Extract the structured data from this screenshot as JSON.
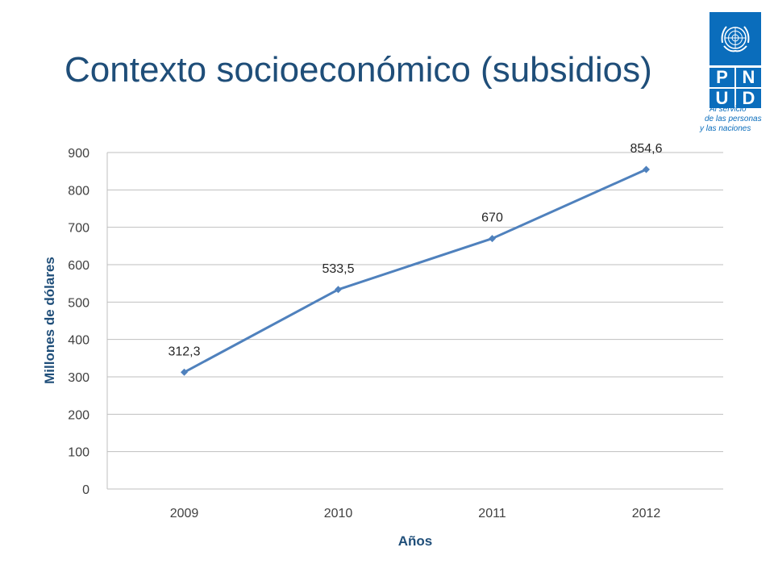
{
  "slide": {
    "title": "Contexto socioeconómico (subsidios)"
  },
  "logo": {
    "icon": "un-emblem-icon",
    "letters": [
      "P",
      "N",
      "U",
      "D"
    ],
    "tagline": [
      "Al servicio",
      "de las personas",
      "y las naciones"
    ],
    "color": "#0a6dbc"
  },
  "chart_data": {
    "type": "line",
    "categories": [
      "2009",
      "2010",
      "2011",
      "2012"
    ],
    "series": [
      {
        "values": [
          312.3,
          533.5,
          670,
          854.6
        ],
        "labels": [
          "312,3",
          "533,5",
          "670",
          "854,6"
        ]
      }
    ],
    "xlabel": "Años",
    "ylabel": "Millones de dólares",
    "ylim": [
      0,
      900
    ],
    "yticks": [
      "0",
      "100",
      "200",
      "300",
      "400",
      "500",
      "600",
      "700",
      "800",
      "900"
    ],
    "grid": true,
    "legend": "none",
    "line_color": "#4f81bd"
  }
}
